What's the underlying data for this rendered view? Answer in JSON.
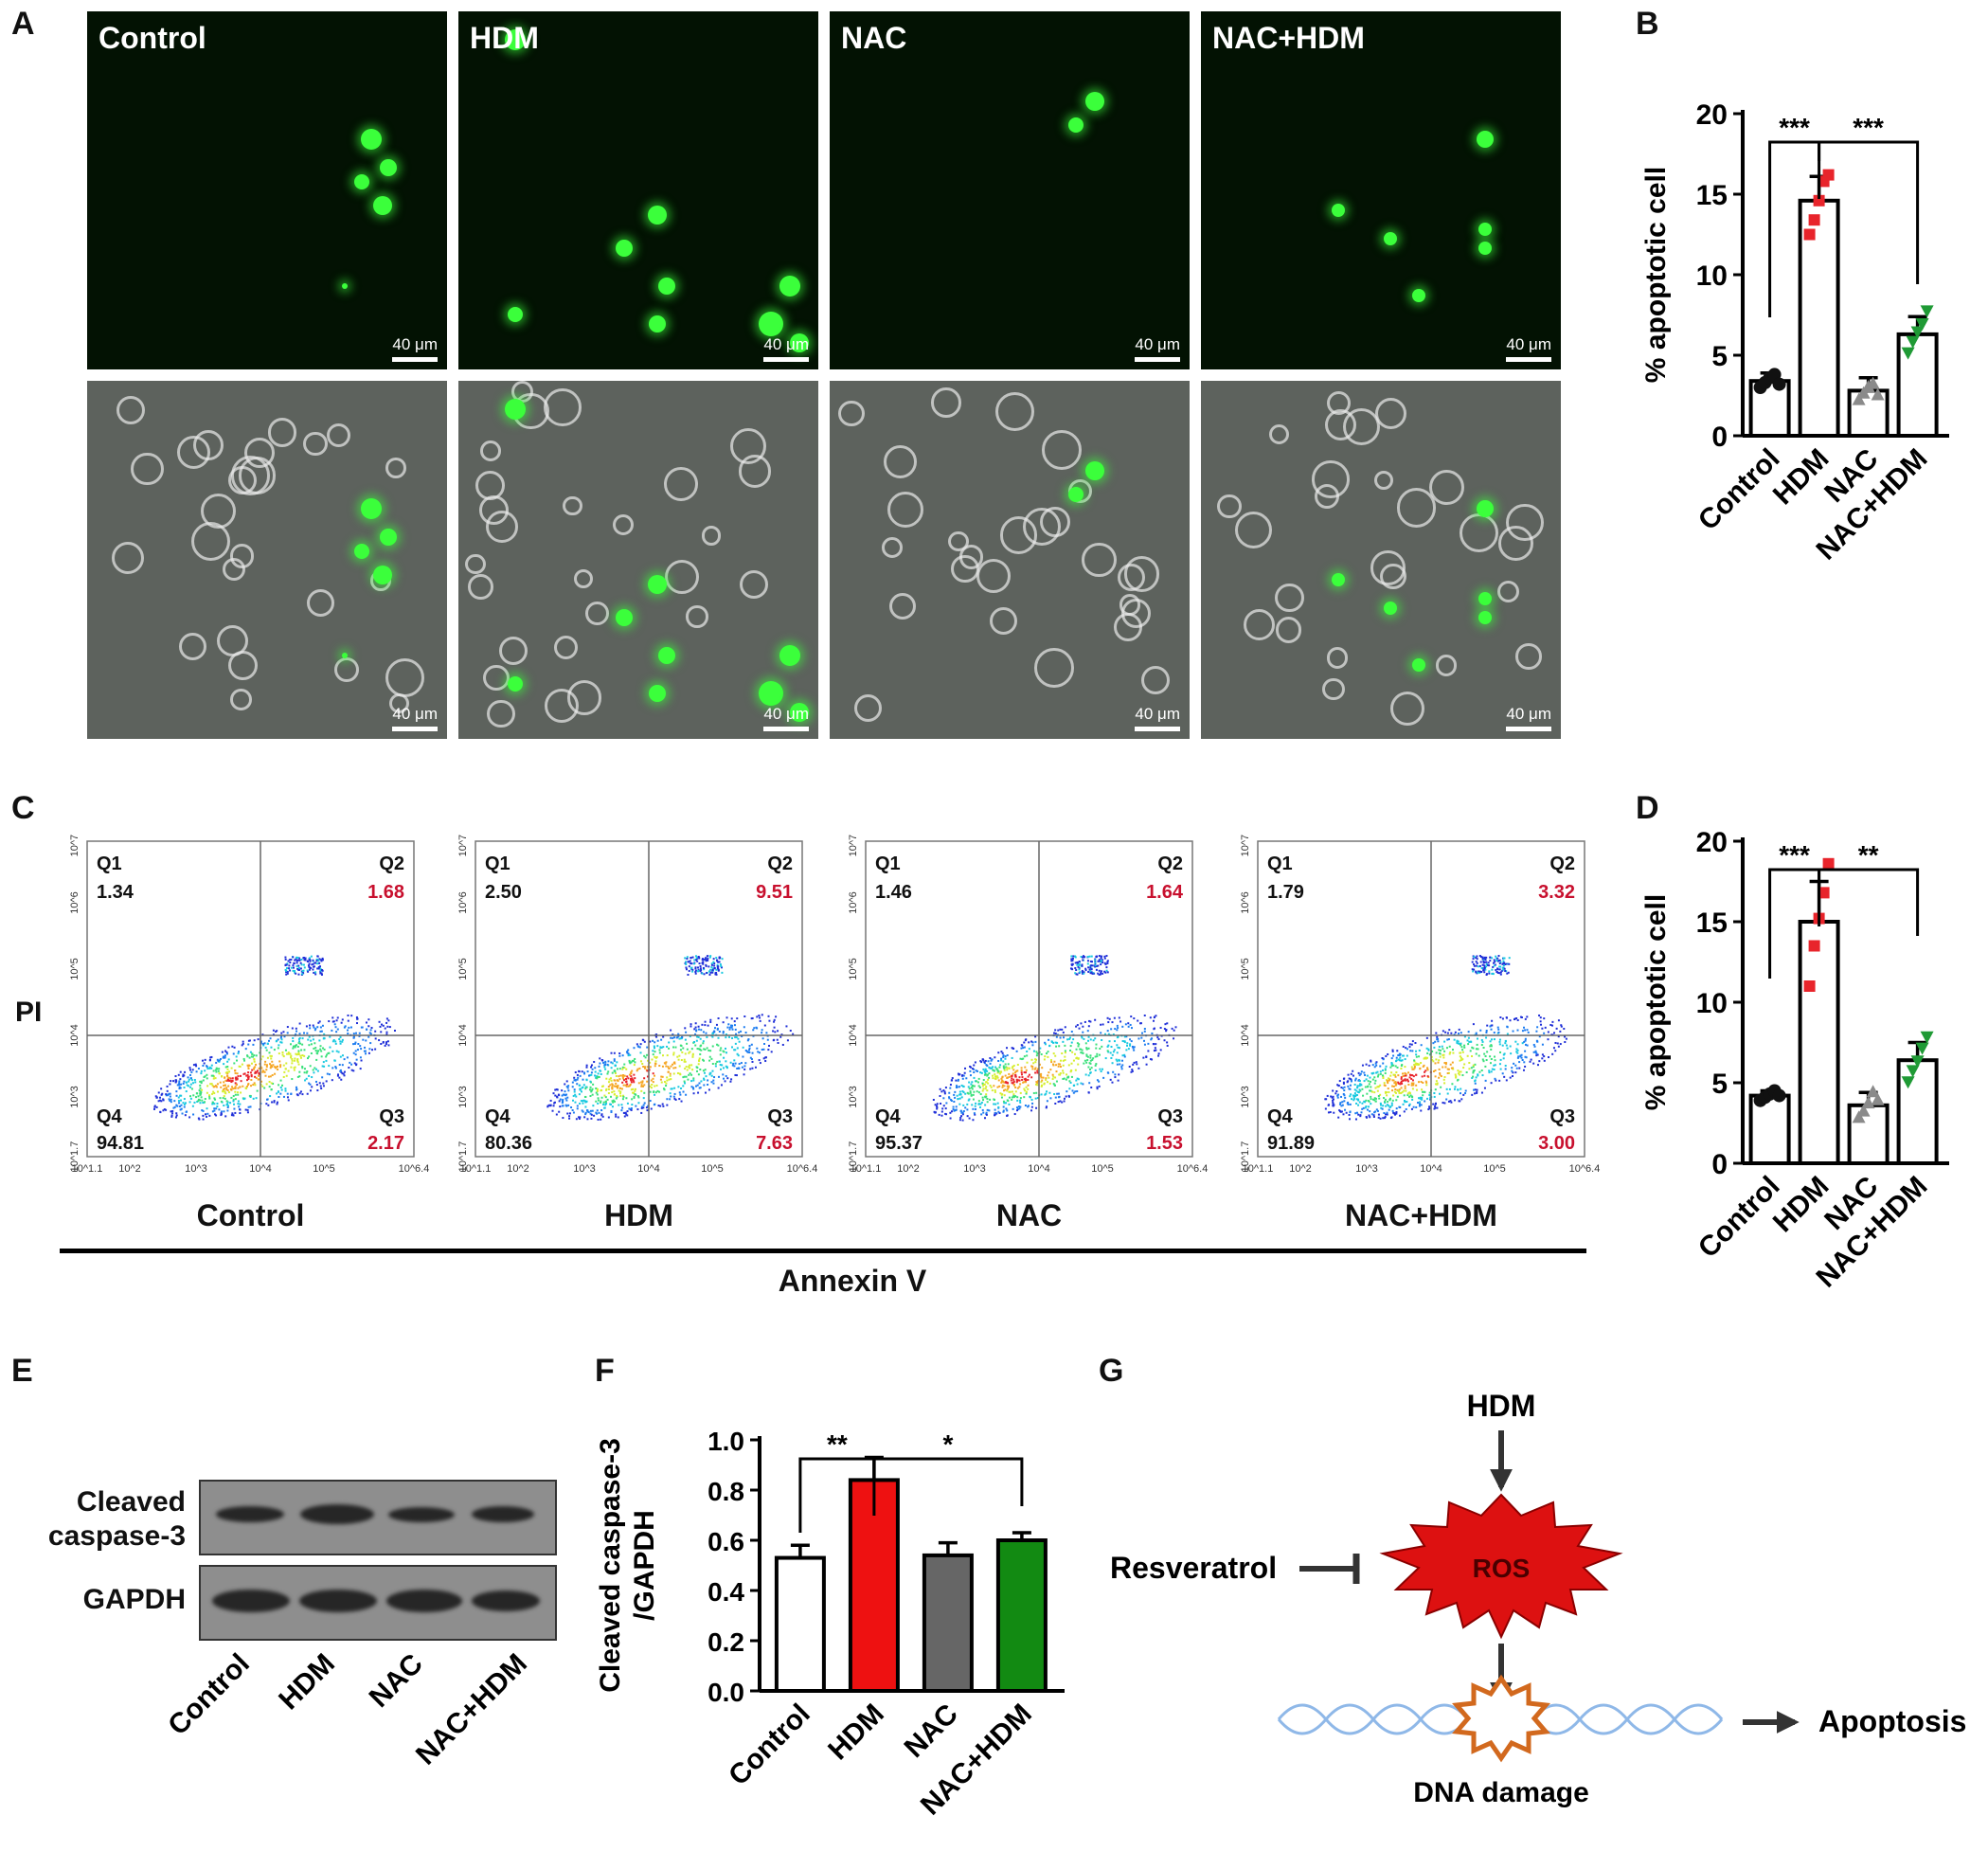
{
  "panels": {
    "A": {
      "letter": "A",
      "groups": [
        "Control",
        "HDM",
        "NAC",
        "NAC+HDM"
      ],
      "scale_bar": "40 μm"
    },
    "B": {
      "letter": "B",
      "chart_data": {
        "type": "bar",
        "categories": [
          "Control",
          "HDM",
          "NAC",
          "NAC+HDM"
        ],
        "values": [
          3.4,
          14.6,
          2.8,
          6.3
        ],
        "errors": [
          0.5,
          1.5,
          0.8,
          1.1
        ],
        "ylabel": "% apoptotic cell",
        "ylim": [
          0,
          20
        ],
        "yticks": [
          0,
          5,
          10,
          15,
          20
        ],
        "colors": [
          "#ffffff",
          "#ffffff",
          "#ffffff",
          "#ffffff"
        ],
        "point_colors": [
          "#111111",
          "#e8242b",
          "#8a8a8a",
          "#1f9a35"
        ],
        "points": [
          [
            3.0,
            3.3,
            3.6,
            3.8,
            3.2
          ],
          [
            12.5,
            13.4,
            14.6,
            15.8,
            16.2
          ],
          [
            2.2,
            2.6,
            3.0,
            3.2,
            2.5
          ],
          [
            5.2,
            5.9,
            6.5,
            7.0,
            7.8
          ]
        ],
        "significance": [
          {
            "from": 0,
            "to": 1,
            "label": "***"
          },
          {
            "from": 1,
            "to": 3,
            "label": "***"
          }
        ]
      }
    },
    "C": {
      "letter": "C",
      "ylabel": "PI",
      "xlabel": "Annexin V",
      "y_ticks": [
        "10^7.3",
        "10^6",
        "10^5",
        "10^4",
        "10^3",
        "10^1.7"
      ],
      "x_ticks": [
        "10^1.1",
        "10^2",
        "10^3",
        "10^4",
        "10^5",
        "10^6.4"
      ],
      "plots": [
        {
          "name": "Control",
          "q1": "1.34",
          "q2": "1.68",
          "q3": "2.17",
          "q4": "94.81"
        },
        {
          "name": "HDM",
          "q1": "2.50",
          "q2": "9.51",
          "q3": "7.63",
          "q4": "80.36"
        },
        {
          "name": "NAC",
          "q1": "1.46",
          "q2": "1.64",
          "q3": "1.53",
          "q4": "95.37"
        },
        {
          "name": "NAC+HDM",
          "q1": "1.79",
          "q2": "3.32",
          "q3": "3.00",
          "q4": "91.89"
        }
      ],
      "quadrant_labels": [
        "Q1",
        "Q2",
        "Q3",
        "Q4"
      ]
    },
    "D": {
      "letter": "D",
      "chart_data": {
        "type": "bar",
        "categories": [
          "Control",
          "HDM",
          "NAC",
          "NAC+HDM"
        ],
        "values": [
          4.2,
          15.0,
          3.6,
          6.4
        ],
        "errors": [
          0.3,
          2.5,
          0.8,
          1.1
        ],
        "ylabel": "% apoptotic cell",
        "ylim": [
          0,
          20
        ],
        "yticks": [
          0,
          5,
          10,
          15,
          20
        ],
        "colors": [
          "#ffffff",
          "#ffffff",
          "#ffffff",
          "#ffffff"
        ],
        "point_colors": [
          "#111111",
          "#e8242b",
          "#8a8a8a",
          "#1f9a35"
        ],
        "points": [
          [
            3.9,
            4.1,
            4.3,
            4.5,
            4.2
          ],
          [
            11.0,
            13.5,
            15.2,
            16.8,
            18.6
          ],
          [
            2.8,
            3.2,
            3.7,
            4.4,
            3.9
          ],
          [
            5.1,
            5.8,
            6.4,
            7.2,
            7.9
          ]
        ],
        "significance": [
          {
            "from": 0,
            "to": 1,
            "label": "***"
          },
          {
            "from": 1,
            "to": 3,
            "label": "**"
          }
        ]
      }
    },
    "E": {
      "letter": "E",
      "rows": [
        "Cleaved caspase-3",
        "GAPDH"
      ],
      "row1_line1": "Cleaved",
      "row1_line2": "caspase-3",
      "lanes": [
        "Control",
        "HDM",
        "NAC",
        "NAC+HDM"
      ]
    },
    "F": {
      "letter": "F",
      "chart_data": {
        "type": "bar",
        "categories": [
          "Control",
          "HDM",
          "NAC",
          "NAC+HDM"
        ],
        "values": [
          0.53,
          0.84,
          0.54,
          0.6
        ],
        "errors": [
          0.05,
          0.09,
          0.05,
          0.03
        ],
        "ylabel_line1": "Cleaved caspase-3",
        "ylabel_line2": "/GAPDH",
        "ylim": [
          0,
          1.0
        ],
        "yticks": [
          "0.0",
          "0.2",
          "0.4",
          "0.6",
          "0.8",
          "1.0"
        ],
        "colors": [
          "#ffffff",
          "#ee1111",
          "#666666",
          "#128a12"
        ],
        "significance": [
          {
            "from": 0,
            "to": 1,
            "label": "**"
          },
          {
            "from": 1,
            "to": 3,
            "label": "*"
          }
        ]
      }
    },
    "G": {
      "letter": "G",
      "hdm": "HDM",
      "ros": "ROS",
      "resveratrol": "Resveratrol",
      "dna_damage": "DNA damage",
      "apoptosis": "Apoptosis"
    }
  }
}
